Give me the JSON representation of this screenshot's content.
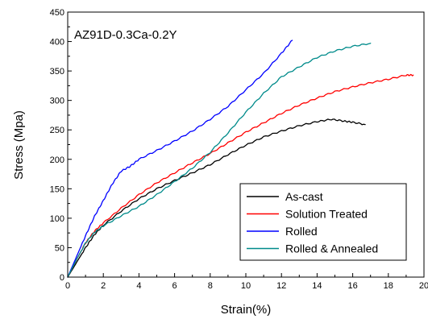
{
  "chart_data": {
    "type": "line",
    "annotation": "AZ91D-0.3Ca-0.2Y",
    "xlabel": "Strain(%)",
    "ylabel": "Stress (Mpa)",
    "xlim": [
      0,
      20
    ],
    "ylim": [
      0,
      450
    ],
    "xticks": [
      "0",
      "2",
      "4",
      "6",
      "8",
      "10",
      "12",
      "14",
      "16",
      "18",
      "20"
    ],
    "yticks": [
      "0",
      "50",
      "100",
      "150",
      "200",
      "250",
      "300",
      "350",
      "400",
      "450"
    ],
    "grid": false,
    "legend_position": "bottom-right",
    "series": [
      {
        "name": "As-cast",
        "color": "#000000",
        "x": [
          0,
          0.5,
          1,
          1.5,
          2,
          3,
          4,
          5,
          6,
          7,
          8,
          9,
          10,
          11,
          12,
          13,
          14,
          14.8,
          15.5,
          16,
          16.7
        ],
        "y": [
          0,
          25,
          50,
          72,
          88,
          112,
          133,
          150,
          164,
          177,
          191,
          208,
          224,
          238,
          248,
          257,
          264,
          268,
          265,
          263,
          259
        ]
      },
      {
        "name": "Solution Treated",
        "color": "#ff0000",
        "x": [
          0,
          0.5,
          1,
          1.5,
          2,
          3,
          4,
          5,
          6,
          7,
          8,
          9,
          10,
          11,
          12,
          13,
          14,
          15,
          16,
          17,
          18,
          19,
          19.4
        ],
        "y": [
          0,
          30,
          58,
          78,
          92,
          117,
          140,
          160,
          177,
          194,
          210,
          228,
          246,
          262,
          278,
          292,
          304,
          315,
          323,
          330,
          336,
          343,
          343
        ]
      },
      {
        "name": "Rolled",
        "color": "#0000ff",
        "x": [
          0,
          0.5,
          1,
          1.5,
          2,
          2.5,
          3,
          3.5,
          4,
          5,
          6,
          7,
          8,
          9,
          10,
          11,
          12,
          12.6
        ],
        "y": [
          0,
          35,
          70,
          103,
          130,
          158,
          180,
          188,
          200,
          215,
          231,
          248,
          268,
          290,
          318,
          346,
          380,
          402
        ]
      },
      {
        "name": "Rolled & Annealed",
        "color": "#008b8b",
        "x": [
          0,
          0.5,
          1,
          1.5,
          2,
          3,
          4,
          5,
          6,
          7,
          8,
          9,
          10,
          11,
          12,
          13,
          14,
          15,
          16,
          17
        ],
        "y": [
          0,
          30,
          58,
          76,
          87,
          104,
          120,
          140,
          162,
          185,
          212,
          245,
          280,
          312,
          340,
          357,
          373,
          384,
          392,
          397
        ]
      }
    ]
  }
}
